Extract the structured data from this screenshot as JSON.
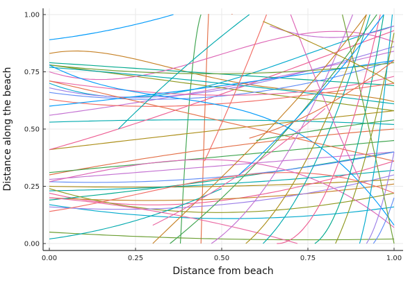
{
  "chart_data": {
    "type": "line",
    "title": "",
    "xlabel": "Distance from beach",
    "ylabel": "Distance along the beach",
    "xlim": [
      0,
      1
    ],
    "ylim": [
      0,
      1
    ],
    "xticks": [
      "0.00",
      "0.25",
      "0.50",
      "0.75",
      "1.00"
    ],
    "yticks": [
      "0.00",
      "0.25",
      "0.50",
      "0.75",
      "1.00"
    ],
    "grid": true,
    "legend": "none",
    "palette": [
      "#009AFA",
      "#E36F47",
      "#3EA44E",
      "#C371D2",
      "#AC8E18",
      "#00AAAE",
      "#ED5E93",
      "#C68125",
      "#00A98D",
      "#8E971E",
      "#00A9CD",
      "#9B7FE8",
      "#618DF6",
      "#F16C64",
      "#DD64B5",
      "#6B9E32",
      "#00A9AD",
      "#EA68A2"
    ],
    "series": [
      {
        "x": [
          0,
          0.2,
          0.36
        ],
        "y": [
          0.89,
          0.94,
          1.0
        ]
      },
      {
        "x": [
          0.44,
          0.45,
          0.53
        ],
        "y": [
          0.0,
          0.52,
          1.0
        ]
      },
      {
        "x": [
          0.38,
          0.4,
          0.44
        ],
        "y": [
          0.0,
          0.5,
          1.0
        ]
      },
      {
        "x": [
          0,
          0.35,
          1
        ],
        "y": [
          0.56,
          0.64,
          0.84
        ]
      },
      {
        "x": [
          0,
          0.4,
          1
        ],
        "y": [
          0.41,
          0.48,
          0.58
        ]
      },
      {
        "x": [
          0,
          0.35,
          1
        ],
        "y": [
          0.53,
          0.54,
          0.52
        ]
      },
      {
        "x": [
          0,
          0.2,
          0.4,
          1
        ],
        "y": [
          0.41,
          0.5,
          0.6,
          0.93
        ]
      },
      {
        "x": [
          0,
          0.1,
          0.4,
          0.65,
          1
        ],
        "y": [
          0.83,
          0.84,
          0.75,
          0.68,
          0.62
        ]
      },
      {
        "x": [
          0,
          0.3,
          1
        ],
        "y": [
          0.79,
          0.76,
          0.69
        ]
      },
      {
        "x": [
          0,
          0.3,
          1
        ],
        "y": [
          0.78,
          0.72,
          0.58
        ]
      },
      {
        "x": [
          0,
          0.2,
          0.6,
          1
        ],
        "y": [
          0.7,
          0.64,
          0.75,
          0.95
        ]
      },
      {
        "x": [
          0,
          0.3,
          0.6,
          1
        ],
        "y": [
          0.68,
          0.64,
          0.7,
          0.86
        ]
      },
      {
        "x": [
          0,
          0.3,
          1
        ],
        "y": [
          0.66,
          0.63,
          0.8
        ]
      },
      {
        "x": [
          0,
          0.35,
          0.7,
          1
        ],
        "y": [
          0.63,
          0.6,
          0.64,
          0.7
        ]
      },
      {
        "x": [
          0,
          0.2,
          0.55,
          1
        ],
        "y": [
          0.75,
          0.72,
          0.85,
          0.88
        ]
      },
      {
        "x": [
          0,
          0.25,
          1
        ],
        "y": [
          0.78,
          0.75,
          0.79
        ]
      },
      {
        "x": [
          0,
          0.3,
          1
        ],
        "y": [
          0.77,
          0.73,
          0.61
        ]
      },
      {
        "x": [
          0,
          0.3,
          0.6,
          1
        ],
        "y": [
          0.71,
          0.66,
          0.65,
          0.73
        ]
      },
      {
        "x": [
          0,
          0.4,
          1
        ],
        "y": [
          0.6,
          0.67,
          0.8
        ]
      },
      {
        "x": [
          0,
          0.5,
          1
        ],
        "y": [
          0.3,
          0.42,
          0.5
        ]
      },
      {
        "x": [
          0,
          0.5,
          1
        ],
        "y": [
          0.31,
          0.38,
          0.45
        ]
      },
      {
        "x": [
          0,
          0.5,
          1
        ],
        "y": [
          0.28,
          0.34,
          0.4
        ]
      },
      {
        "x": [
          0,
          0.5,
          1
        ],
        "y": [
          0.25,
          0.25,
          0.28
        ]
      },
      {
        "x": [
          0,
          0.5,
          1
        ],
        "y": [
          0.23,
          0.26,
          0.32
        ]
      },
      {
        "x": [
          0,
          0.35,
          0.7,
          1
        ],
        "y": [
          0.22,
          0.17,
          0.24,
          0.36
        ]
      },
      {
        "x": [
          0,
          0.4,
          1
        ],
        "y": [
          0.2,
          0.19,
          0.26
        ]
      },
      {
        "x": [
          0,
          0.35,
          1
        ],
        "y": [
          0.19,
          0.25,
          0.4
        ]
      },
      {
        "x": [
          0,
          0.3,
          0.6,
          1
        ],
        "y": [
          0.24,
          0.15,
          0.14,
          0.22
        ]
      },
      {
        "x": [
          0,
          0.3,
          1
        ],
        "y": [
          0.17,
          0.12,
          0.16
        ]
      },
      {
        "x": [
          0,
          0.5,
          1
        ],
        "y": [
          0.16,
          0.17,
          0.3
        ]
      },
      {
        "x": [
          0,
          0.4,
          1
        ],
        "y": [
          0.27,
          0.28,
          0.4
        ]
      },
      {
        "x": [
          0,
          0.3,
          0.8,
          1
        ],
        "y": [
          0.14,
          0.23,
          0.3,
          0.22
        ]
      },
      {
        "x": [
          0,
          0.35,
          0.75,
          1
        ],
        "y": [
          0.27,
          0.36,
          0.29,
          0.07
        ]
      },
      {
        "x": [
          0,
          0.5,
          1
        ],
        "y": [
          0.05,
          0.02,
          0.02
        ]
      },
      {
        "x": [
          0,
          0.25,
          0.5
        ],
        "y": [
          0.02,
          0.1,
          0.24
        ]
      },
      {
        "x": [
          0,
          0.45,
          0.72
        ],
        "y": [
          0.2,
          0.1,
          0.0
        ]
      },
      {
        "x": [
          0,
          0.3,
          0.7,
          1
        ],
        "y": [
          0.78,
          0.65,
          0.5,
          0.08
        ]
      },
      {
        "x": [
          0,
          0.6,
          1
        ],
        "y": [
          0.71,
          0.5,
          0.36
        ]
      },
      {
        "x": [
          0.35,
          0.6,
          0.95
        ],
        "y": [
          0.0,
          0.35,
          1.0
        ]
      },
      {
        "x": [
          0.47,
          0.7,
          0.88
        ],
        "y": [
          0.0,
          0.42,
          1.0
        ]
      },
      {
        "x": [
          0.57,
          0.74,
          0.92
        ],
        "y": [
          0.0,
          0.35,
          1.0
        ]
      },
      {
        "x": [
          0.62,
          0.8,
          0.93
        ],
        "y": [
          0.0,
          0.45,
          1.0
        ]
      },
      {
        "x": [
          0.66,
          0.85,
          0.96
        ],
        "y": [
          0.0,
          0.4,
          1.0
        ]
      },
      {
        "x": [
          0.3,
          0.52,
          0.7,
          0.92
        ],
        "y": [
          0.0,
          0.32,
          0.6,
          1.0
        ]
      },
      {
        "x": [
          0.77,
          0.88,
          0.97
        ],
        "y": [
          0.0,
          0.35,
          1.0
        ]
      },
      {
        "x": [
          0.83,
          0.93,
          1.0
        ],
        "y": [
          0.0,
          0.45,
          0.92
        ]
      },
      {
        "x": [
          0.9,
          0.95,
          0.995
        ],
        "y": [
          0.0,
          0.4,
          1.0
        ]
      },
      {
        "x": [
          0.92,
          0.97,
          1.0
        ],
        "y": [
          0.0,
          0.2,
          0.4
        ]
      },
      {
        "x": [
          0.94,
          0.97,
          1.0
        ],
        "y": [
          0.0,
          0.08,
          0.2
        ]
      },
      {
        "x": [
          0.45,
          0.55,
          0.63
        ],
        "y": [
          0.36,
          0.7,
          1.0
        ]
      },
      {
        "x": [
          0.7,
          0.8,
          0.9
        ],
        "y": [
          1.0,
          0.62,
          0.28
        ]
      },
      {
        "x": [
          0.85,
          0.92,
          1.0
        ],
        "y": [
          1.0,
          0.55,
          0.0
        ]
      },
      {
        "x": [
          0.2,
          0.4,
          0.58
        ],
        "y": [
          0.5,
          0.78,
          1.0
        ]
      },
      {
        "x": [
          0.3,
          0.55,
          0.8
        ],
        "y": [
          0.08,
          0.3,
          0.59
        ]
      },
      {
        "x": [
          0.55,
          0.75,
          0.97
        ],
        "y": [
          0.3,
          0.6,
          1.0
        ]
      },
      {
        "x": [
          0.58,
          0.8,
          1.0
        ],
        "y": [
          0.46,
          0.6,
          0.8
        ]
      },
      {
        "x": [
          0.6,
          0.8,
          1.0
        ],
        "y": [
          0.45,
          0.5,
          0.54
        ]
      },
      {
        "x": [
          0.64,
          0.82,
          1.0
        ],
        "y": [
          0.95,
          0.9,
          0.95
        ]
      },
      {
        "x": [
          0.62,
          0.8,
          1.0
        ],
        "y": [
          0.97,
          0.85,
          0.7
        ]
      }
    ]
  }
}
